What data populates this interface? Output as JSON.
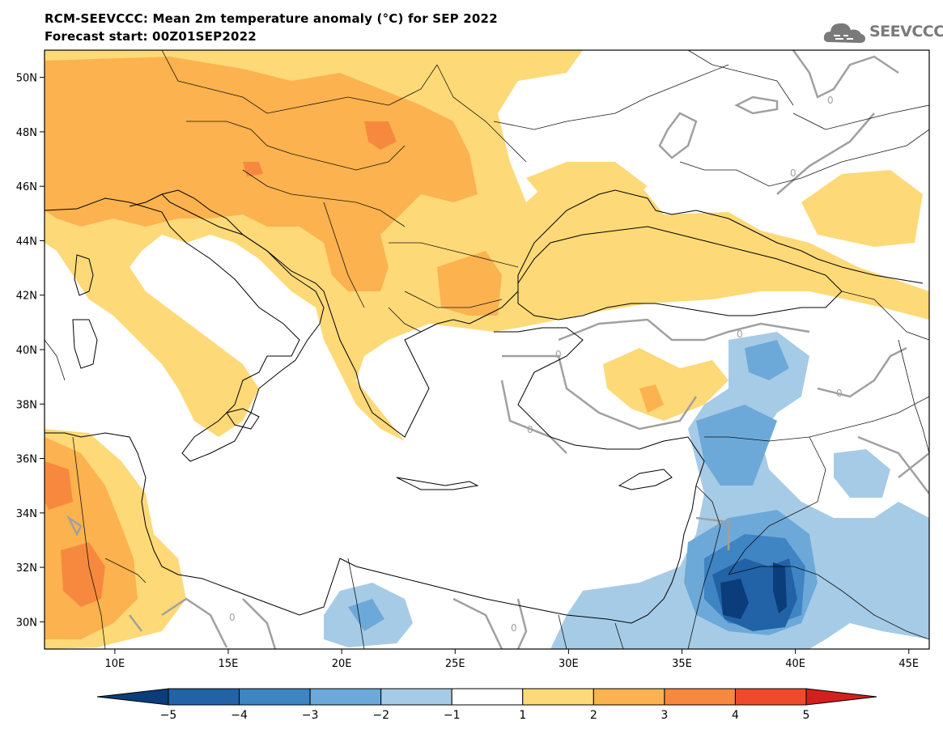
{
  "header": {
    "title": "RCM-SEEVCCC: Mean 2m temperature anomaly (°C) for SEP 2022",
    "subtitle": "Forecast start: 00Z01SEP2022"
  },
  "logo": {
    "text": "SEEVCCC",
    "icon": "cloud-icon"
  },
  "axes": {
    "lat_labels": [
      "50N",
      "48N",
      "46N",
      "44N",
      "42N",
      "40N",
      "38N",
      "36N",
      "34N",
      "32N",
      "30N"
    ],
    "lat_values": [
      50,
      48,
      46,
      44,
      42,
      40,
      38,
      36,
      34,
      32,
      30
    ],
    "lon_labels": [
      "10E",
      "15E",
      "20E",
      "25E",
      "30E",
      "35E",
      "40E",
      "45E"
    ],
    "lon_values": [
      10,
      15,
      20,
      25,
      30,
      35,
      40,
      45
    ],
    "lon_range": [
      6.9,
      45.9
    ],
    "lat_range": [
      29,
      51
    ]
  },
  "colorbar": {
    "labels": [
      "−5",
      "−4",
      "−3",
      "−2",
      "−1",
      "1",
      "2",
      "3",
      "4",
      "5"
    ],
    "colors": [
      "#0b3d7a",
      "#2163a6",
      "#3f84c3",
      "#6da9d8",
      "#a6cbe6",
      "#ffffff",
      "#fdd978",
      "#fbb24f",
      "#f7893e",
      "#ef4b2a",
      "#d41f1f"
    ]
  },
  "map": {
    "contour_label": "0",
    "colors": {
      "warm1": "#fdd978",
      "warm2": "#fbb24f",
      "warm3": "#f7893e",
      "hot": "#ef4b2a",
      "cool1": "#a6cbe6",
      "cool2": "#6da9d8",
      "cool3": "#3f84c3",
      "cool4": "#2163a6",
      "cool5": "#0b3d7a",
      "contour": "#a0a0a0",
      "coast": "#000000"
    }
  }
}
